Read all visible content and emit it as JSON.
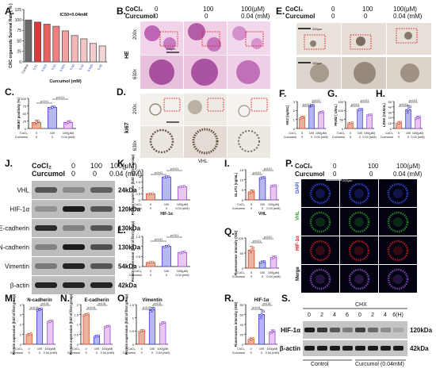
{
  "panel_letters": [
    "A.",
    "B.",
    "C.",
    "D.",
    "E.",
    "F.",
    "G.",
    "H.",
    "I.",
    "J.",
    "K.",
    "L.",
    "M.",
    "N.",
    "O.",
    "P.",
    "Q.",
    "R.",
    "S."
  ],
  "treatments": {
    "cocl2_label": "CoCl₂",
    "curcumol_label": "Curcumol",
    "cocl2_values": [
      "0",
      "100",
      "100(μM)"
    ],
    "curcumol_values": [
      "0",
      "0",
      "0.04 (mM)"
    ],
    "curcumol_values_short": [
      "0",
      "0",
      "0.04(mM)"
    ],
    "axis_cocl2": [
      "0",
      "100",
      "100(μM)"
    ],
    "axis_curcumol": [
      "0",
      "0",
      "0.04 (mM)"
    ],
    "axis_cocl2_label": "CoCl₂",
    "axis_curcumol_label": "Curcumol"
  },
  "image_labels": {
    "he": "HE",
    "ki67": "ki67",
    "vhl": "VHL",
    "mag_200": "200x",
    "mag_630": "630x",
    "scale_100": "100μm",
    "scale_200": "200μm",
    "scale_400": "400μm",
    "dapi": "DAPI",
    "vhl_if": "VHL",
    "hif_if": "HIF-1α",
    "merge": "Merge"
  },
  "sig": {
    "p01": "p<0.01",
    "p001": "p<0.001",
    "p0001": "p<0.0001"
  },
  "western_j": {
    "bands": [
      {
        "protein": "VHL",
        "kda": "24kDa"
      },
      {
        "protein": "HIF-1α",
        "kda": "120kDa"
      },
      {
        "protein": "E-cadherin",
        "kda": "130kDa"
      },
      {
        "protein": "N-cadherin",
        "kda": "130kDa"
      },
      {
        "protein": "Vimentin",
        "kda": "54kDa"
      },
      {
        "protein": "β-actin",
        "kda": "42kDa"
      }
    ]
  },
  "western_s": {
    "chx": "CHX",
    "times": [
      "0",
      "2",
      "4",
      "6",
      "0",
      "2",
      "4",
      "6(H)"
    ],
    "bands": [
      {
        "protein": "HIF-1α",
        "kda": "120kDa"
      },
      {
        "protein": "β-actin",
        "kda": "42kDa"
      }
    ],
    "groups": [
      "Control",
      "Curcumol  (0.04mM)"
    ]
  },
  "chart_data": [
    {
      "panel": "A",
      "type": "bar",
      "ylabel": "CRC organoids Survival Rate ( % )",
      "xlabel": "Curcumol (mM)",
      "annotation": "IC50=0.04mM",
      "categories": [
        "Control",
        "0.01",
        "0.015",
        "0.02",
        "0.025",
        "0.03",
        "0.04",
        "0.045",
        "0.05"
      ],
      "values": [
        100,
        95,
        90,
        85,
        74,
        63,
        55,
        44,
        38
      ],
      "ylim": [
        0,
        125
      ],
      "yticks": [
        0,
        25,
        50,
        75,
        100,
        125
      ]
    },
    {
      "panel": "C",
      "type": "bar",
      "ylabel": "MKi67 positivity (%)",
      "values": [
        20,
        70,
        20
      ],
      "errors": [
        8,
        4,
        6
      ],
      "ylim": [
        0,
        100
      ],
      "yticks": [
        0,
        25,
        50,
        75,
        100
      ],
      "significance": [
        "p<0.01",
        "p<0.01"
      ]
    },
    {
      "panel": "F",
      "type": "bar",
      "ylabel": "HK2 (ng/mL)",
      "values": [
        1.2,
        2.5,
        1.8
      ],
      "errors": [
        0.15,
        0.15,
        0.1
      ],
      "ylim": [
        0,
        3
      ],
      "yticks": [
        0,
        1,
        2,
        3
      ],
      "significance": [
        "p<0.01",
        "p<0.01"
      ]
    },
    {
      "panel": "G",
      "type": "bar",
      "ylabel": "PKM2 ( U/mL)",
      "values": [
        30,
        105,
        75
      ],
      "errors": [
        4,
        6,
        5
      ],
      "ylim": [
        0,
        150
      ],
      "yticks": [
        0,
        50,
        100,
        150
      ],
      "significance": [
        "p<0.01",
        "p<0.01"
      ]
    },
    {
      "panel": "H",
      "type": "bar",
      "ylabel": "LDHA (mU/mL)",
      "values": [
        10,
        35,
        20
      ],
      "errors": [
        3,
        8,
        3
      ],
      "ylim": [
        0,
        50
      ],
      "yticks": [
        0,
        10,
        20,
        30,
        40,
        50
      ],
      "significance": [
        "p<0.01",
        "p<0.01"
      ]
    },
    {
      "panel": "K",
      "type": "bar",
      "ylabel": "Protein expression (fold of first group)",
      "xlabel": "HIF-1α",
      "values": [
        0.5,
        1.9,
        1.1
      ],
      "errors": [
        0.05,
        0.08,
        0.06
      ],
      "ylim": [
        0,
        2.5
      ],
      "yticks": [
        0,
        0.5,
        1.0,
        1.5,
        2.0,
        2.5
      ],
      "significance": [
        "p<0.01",
        "p<0.01"
      ]
    },
    {
      "panel": "I",
      "type": "bar",
      "ylabel": "GLUT1 (ng/mL)",
      "xlabel": "VHL",
      "values": [
        4,
        11,
        7
      ],
      "errors": [
        1,
        0.5,
        0.4
      ],
      "ylim": [
        0,
        15
      ],
      "yticks": [
        0,
        5,
        10,
        15
      ],
      "significance": [
        "p<0.01",
        "p<0.01"
      ]
    },
    {
      "panel": "L",
      "type": "bar",
      "ylabel": "Protein expression (fold of first group)",
      "values": [
        0.2,
        1.0,
        0.7
      ],
      "errors": [
        0.04,
        0.05,
        0.05
      ],
      "ylim": [
        0,
        1.5
      ],
      "yticks": [
        0,
        0.5,
        1.0,
        1.5
      ],
      "significance": [
        "p<0.01",
        "p<0.01"
      ]
    },
    {
      "panel": "Q",
      "type": "bar",
      "ylabel": "Fluorescence intensity (IOD)",
      "values": [
        60,
        20,
        35
      ],
      "errors": [
        12,
        4,
        5
      ],
      "ylim": [
        0,
        100
      ],
      "yticks": [
        0,
        50,
        100
      ],
      "significance": [
        "p<0.01",
        "p<0.01"
      ]
    },
    {
      "panel": "M",
      "type": "bar",
      "ylabel": "Protein expression (fold of first group)",
      "title": "N-cadherin",
      "values": [
        1.0,
        3.5,
        2.3
      ],
      "errors": [
        0.1,
        0.12,
        0.1
      ],
      "ylim": [
        0,
        4
      ],
      "yticks": [
        0,
        1,
        2,
        3,
        4
      ],
      "significance": [
        "p<0.01",
        "p<0.01"
      ]
    },
    {
      "panel": "N",
      "type": "bar",
      "ylabel": "Protein expression (fold of first group)",
      "title": "E-cadherin",
      "values": [
        1.5,
        0.4,
        0.9
      ],
      "errors": [
        0.05,
        0.05,
        0.05
      ],
      "ylim": [
        0,
        2
      ],
      "yticks": [
        0,
        0.5,
        1.0,
        1.5,
        2.0
      ],
      "significance": [
        "p<0.01",
        "p<0.01"
      ]
    },
    {
      "panel": "O",
      "type": "bar",
      "ylabel": "Protein expression (fold of first group)",
      "title": "Vimentin",
      "values": [
        0.5,
        1.3,
        0.8
      ],
      "errors": [
        0.05,
        0.1,
        0.05
      ],
      "ylim": [
        0,
        1.5
      ],
      "yticks": [
        0,
        0.5,
        1.0,
        1.5
      ],
      "significance": [
        "p<0.01",
        "p<0.01"
      ]
    },
    {
      "panel": "R",
      "type": "bar",
      "ylabel": "Fluorescence intensity (IOD)",
      "title": "HIF-1α",
      "values": [
        10,
        60,
        25
      ],
      "errors": [
        3,
        10,
        4
      ],
      "ylim": [
        0,
        80
      ],
      "yticks": [
        0,
        20,
        40,
        60,
        80
      ],
      "significance": [
        "p<0.01",
        "p<0.01"
      ]
    }
  ],
  "colors": {
    "control": "#e8b3a0",
    "cocl2": "#b8b8f0",
    "curcumol": "#e8c8f0",
    "control_edge": "#d84a2a",
    "cocl2_edge": "#3a3ad0",
    "curcumol_edge": "#9a4ad0",
    "dose_gradient": [
      "#6b6b6b",
      "#d83a3a",
      "#e86060",
      "#ec8080",
      "#f0a0a0",
      "#f4b8b8",
      "#f4c4c4",
      "#f4cccc",
      "#f4d4d4"
    ]
  }
}
